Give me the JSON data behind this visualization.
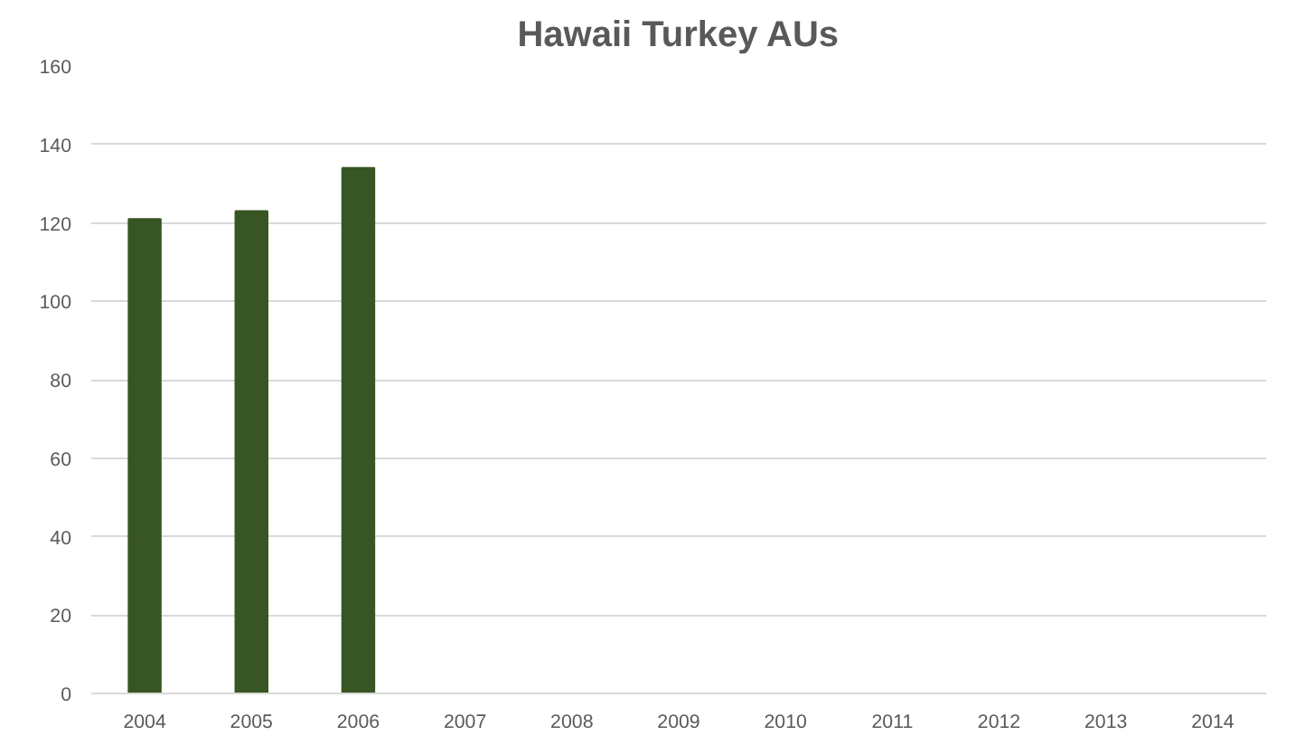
{
  "chart_data": {
    "type": "bar",
    "title": "Hawaii Turkey AUs",
    "categories": [
      "2004",
      "2005",
      "2006",
      "2007",
      "2008",
      "2009",
      "2010",
      "2011",
      "2012",
      "2013",
      "2014"
    ],
    "values": [
      121,
      123,
      134,
      null,
      null,
      null,
      null,
      null,
      null,
      null,
      null
    ],
    "color": "#375623",
    "ylim": [
      0,
      160
    ],
    "yticks": [
      0,
      20,
      40,
      60,
      80,
      100,
      120,
      140,
      160
    ],
    "grid": "y"
  }
}
